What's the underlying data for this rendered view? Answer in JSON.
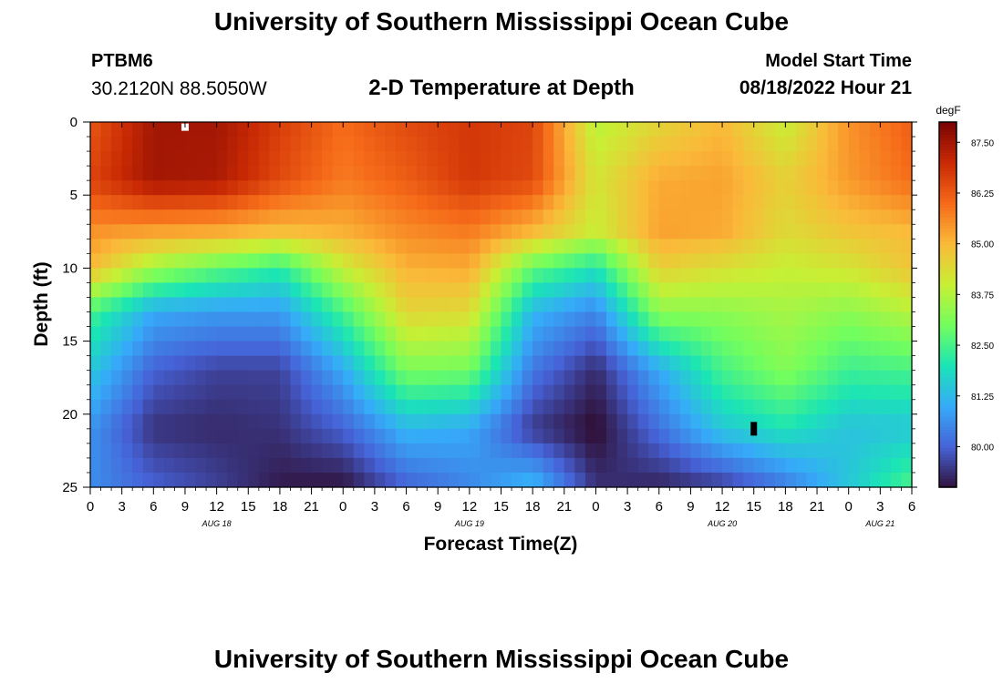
{
  "page": {
    "title": "University of Southern Mississippi Ocean Cube",
    "footer_title": "University of Southern Mississippi Ocean Cube",
    "station": "PTBM6",
    "coordinates": "30.2120N  88.5050W",
    "subtitle": "2-D Temperature at Depth",
    "model_start_label": "Model Start Time",
    "model_start_value": "08/18/2022 Hour 21"
  },
  "chart_data": {
    "type": "heatmap",
    "title": "2-D Temperature at Depth",
    "xlabel": "Forecast Time(Z)",
    "ylabel": "Depth (ft)",
    "colorbar_label": "degF",
    "colorbar_ticks": [
      87.5,
      86.25,
      85.0,
      83.75,
      82.5,
      81.25,
      80.0
    ],
    "colorbar_tick_labels": [
      "87.50",
      "86.25",
      "85.00",
      "83.75",
      "82.50",
      "81.25",
      "80.00"
    ],
    "vmin": 79.0,
    "vmax": 88.0,
    "x_ticks": [
      0,
      3,
      6,
      9,
      12,
      15,
      18,
      21,
      24,
      27,
      30,
      33,
      36,
      39,
      42,
      45,
      48,
      51,
      54,
      57,
      60,
      63,
      66,
      69,
      72,
      75,
      78
    ],
    "x_tick_labels": [
      "0",
      "3",
      "6",
      "9",
      "12",
      "15",
      "18",
      "21",
      "0",
      "3",
      "6",
      "9",
      "12",
      "15",
      "18",
      "21",
      "0",
      "3",
      "6",
      "9",
      "12",
      "15",
      "18",
      "21",
      "0",
      "3",
      "6"
    ],
    "date_labels": [
      {
        "text": "AUG 18",
        "x": 12
      },
      {
        "text": "AUG 19",
        "x": 36
      },
      {
        "text": "AUG 20",
        "x": 60
      },
      {
        "text": "AUG 21",
        "x": 75
      }
    ],
    "y_ticks": [
      0,
      5,
      10,
      15,
      20,
      25
    ],
    "y_tick_labels": [
      "0",
      "5",
      "10",
      "15",
      "20",
      "25"
    ],
    "xlim": [
      0,
      78
    ],
    "ylim": [
      25,
      0
    ],
    "time_hours": [
      0,
      6,
      12,
      18,
      24,
      30,
      36,
      42,
      48,
      54,
      60,
      66,
      72,
      78
    ],
    "depth_ft": [
      0,
      4,
      7.5,
      10,
      13,
      17,
      21,
      25
    ],
    "temperature_degF": [
      [
        86.3,
        87.5,
        87.5,
        86.7,
        86.0,
        86.5,
        86.8,
        86.6,
        83.8,
        84.5,
        85.0,
        84.0,
        85.5,
        86.2
      ],
      [
        86.6,
        87.5,
        87.4,
        86.5,
        85.8,
        86.2,
        86.8,
        86.5,
        84.2,
        85.2,
        85.3,
        84.6,
        85.4,
        86.0
      ],
      [
        85.5,
        85.3,
        85.2,
        84.9,
        85.1,
        85.6,
        85.8,
        85.0,
        84.0,
        85.3,
        85.2,
        84.4,
        84.8,
        85.0
      ],
      [
        85.0,
        83.5,
        82.8,
        82.2,
        84.0,
        85.1,
        85.2,
        82.8,
        82.0,
        84.6,
        84.3,
        84.0,
        84.2,
        84.8
      ],
      [
        82.5,
        81.0,
        80.8,
        80.8,
        82.5,
        84.5,
        84.4,
        81.2,
        80.5,
        83.3,
        83.3,
        83.6,
        83.3,
        83.8
      ],
      [
        81.5,
        80.0,
        79.6,
        79.6,
        81.0,
        83.1,
        83.0,
        80.3,
        79.3,
        81.0,
        82.5,
        83.2,
        82.4,
        82.5
      ],
      [
        80.7,
        79.4,
        79.3,
        79.4,
        80.0,
        81.2,
        81.0,
        79.5,
        78.9,
        80.2,
        81.5,
        82.0,
        81.4,
        81.5
      ],
      [
        80.6,
        80.0,
        79.6,
        79.1,
        79.0,
        80.0,
        80.5,
        81.3,
        79.4,
        79.2,
        79.5,
        80.3,
        81.5,
        82.6
      ]
    ],
    "markers": [
      {
        "name": "white-marker",
        "x": 9,
        "y": 0.35,
        "color": "#ffffff"
      },
      {
        "name": "black-marker",
        "x": 63,
        "y": 21,
        "color": "#000000"
      }
    ],
    "colormap": [
      "#30123b",
      "#4662d7",
      "#36aaf9",
      "#1ae4b6",
      "#72fe5e",
      "#c8ef34",
      "#faba39",
      "#f66b19",
      "#ca2a04",
      "#7a0403"
    ]
  }
}
